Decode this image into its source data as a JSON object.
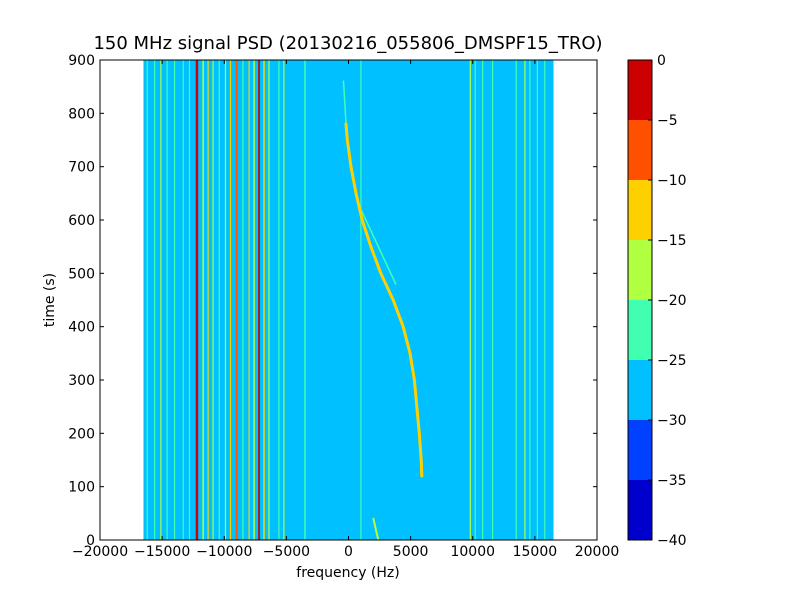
{
  "chart_data": {
    "type": "heatmap",
    "title": "150 MHz signal PSD (20130216_055806_DMSPF15_TRO)",
    "xlabel": "frequency (Hz)",
    "ylabel": "time (s)",
    "xlim": [
      -20000,
      20000
    ],
    "ylim": [
      0,
      900
    ],
    "xticks": [
      -20000,
      -15000,
      -10000,
      -5000,
      0,
      5000,
      10000,
      15000,
      20000
    ],
    "xtick_labels": [
      "−20000",
      "−15000",
      "−10000",
      "−5000",
      "0",
      "5000",
      "10000",
      "15000",
      "20000"
    ],
    "yticks": [
      0,
      100,
      200,
      300,
      400,
      500,
      600,
      700,
      800,
      900
    ],
    "ytick_labels": [
      "0",
      "100",
      "200",
      "300",
      "400",
      "500",
      "600",
      "700",
      "800",
      "900"
    ],
    "data_extent_x": [
      -16500,
      16500
    ],
    "background_level": -27.5,
    "colorbar": {
      "levels": [
        -40,
        -35,
        -30,
        -25,
        -20,
        -15,
        -10,
        -5,
        0
      ],
      "tick_labels": [
        "−40",
        "−35",
        "−30",
        "−25",
        "−20",
        "−15",
        "−10",
        "−5",
        "0"
      ],
      "colors": [
        "#0000cd",
        "#0040ff",
        "#00c0ff",
        "#40ffb0",
        "#b0ff40",
        "#ffd000",
        "#ff5000",
        "#cd0000"
      ]
    },
    "vertical_lines": [
      {
        "freq": -16200,
        "level": -22.5,
        "width": 80
      },
      {
        "freq": -15600,
        "level": -22.5,
        "width": 60
      },
      {
        "freq": -15100,
        "level": -17.5,
        "width": 60
      },
      {
        "freq": -14600,
        "level": -22.5,
        "width": 60
      },
      {
        "freq": -14000,
        "level": -22.5,
        "width": 60
      },
      {
        "freq": -13300,
        "level": -22.5,
        "width": 60
      },
      {
        "freq": -12800,
        "level": -22.5,
        "width": 60
      },
      {
        "freq": -12200,
        "level": -2.5,
        "width": 200
      },
      {
        "freq": -11700,
        "level": -17.5,
        "width": 120
      },
      {
        "freq": -11300,
        "level": -12.5,
        "width": 80
      },
      {
        "freq": -10900,
        "level": -17.5,
        "width": 80
      },
      {
        "freq": -10400,
        "level": -22.5,
        "width": 100
      },
      {
        "freq": -9900,
        "level": -17.5,
        "width": 80
      },
      {
        "freq": -9500,
        "level": -12.5,
        "width": 100
      },
      {
        "freq": -9000,
        "level": -7.5,
        "width": 120
      },
      {
        "freq": -8500,
        "level": -22.5,
        "width": 100
      },
      {
        "freq": -8000,
        "level": -12.5,
        "width": 80
      },
      {
        "freq": -7600,
        "level": -17.5,
        "width": 120
      },
      {
        "freq": -7200,
        "level": -2.5,
        "width": 140
      },
      {
        "freq": -6800,
        "level": -12.5,
        "width": 120
      },
      {
        "freq": -6400,
        "level": -17.5,
        "width": 80
      },
      {
        "freq": -5600,
        "level": -22.5,
        "width": 60
      },
      {
        "freq": -5200,
        "level": -17.5,
        "width": 60
      },
      {
        "freq": -3500,
        "level": -22.5,
        "width": 120
      },
      {
        "freq": 1000,
        "level": -22.5,
        "width": 80
      },
      {
        "freq": 9800,
        "level": -17.5,
        "width": 100
      },
      {
        "freq": 10200,
        "level": -22.5,
        "width": 60
      },
      {
        "freq": 10800,
        "level": -22.5,
        "width": 60
      },
      {
        "freq": 11600,
        "level": -22.5,
        "width": 60
      },
      {
        "freq": 13500,
        "level": -22.5,
        "width": 80
      },
      {
        "freq": 14200,
        "level": -17.5,
        "width": 60
      },
      {
        "freq": 14600,
        "level": -22.5,
        "width": 60
      },
      {
        "freq": 15200,
        "level": -22.5,
        "width": 60
      },
      {
        "freq": 15800,
        "level": -22.5,
        "width": 60
      }
    ],
    "doppler_trace": {
      "level": -12.5,
      "points": [
        [
          5900,
          120
        ],
        [
          5850,
          150
        ],
        [
          5700,
          200
        ],
        [
          5500,
          250
        ],
        [
          5300,
          300
        ],
        [
          4950,
          350
        ],
        [
          4400,
          400
        ],
        [
          3600,
          450
        ],
        [
          2600,
          500
        ],
        [
          1800,
          550
        ],
        [
          1100,
          600
        ],
        [
          600,
          650
        ],
        [
          200,
          700
        ],
        [
          -100,
          750
        ],
        [
          -200,
          780
        ]
      ]
    },
    "doppler_trace_faint": {
      "level": -22.5,
      "points": [
        [
          -200,
          780
        ],
        [
          -300,
          820
        ],
        [
          -400,
          860
        ]
      ]
    },
    "secondary_trace": {
      "level": -22.5,
      "points": [
        [
          1000,
          620
        ],
        [
          1800,
          580
        ],
        [
          2600,
          540
        ],
        [
          3200,
          510
        ],
        [
          3800,
          480
        ]
      ]
    },
    "bottom_trace": {
      "level": -17.5,
      "points": [
        [
          2400,
          0
        ],
        [
          2200,
          20
        ],
        [
          2000,
          40
        ]
      ]
    }
  }
}
